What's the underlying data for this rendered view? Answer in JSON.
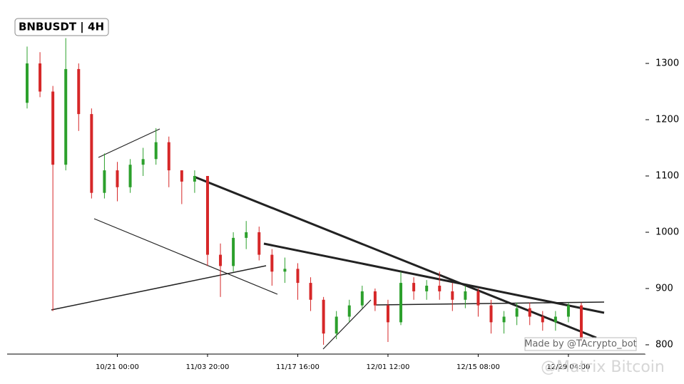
{
  "chart_data": {
    "type": "candlestick",
    "title": "BNBUSDT | 4H",
    "categories": [
      null,
      null,
      null,
      null,
      null,
      null,
      null,
      "10/21 00:00",
      null,
      null,
      null,
      null,
      null,
      null,
      "11/03 20:00",
      null,
      null,
      null,
      null,
      null,
      null,
      "11/17 16:00",
      null,
      null,
      null,
      null,
      null,
      null,
      "12/01 12:00",
      null,
      null,
      null,
      null,
      null,
      null,
      "12/15 08:00",
      null,
      null,
      null,
      null,
      null,
      null,
      "12/29 04:00",
      null
    ],
    "open": [
      1230,
      1300,
      1250,
      1120,
      1290,
      1210,
      1070,
      1110,
      1080,
      1120,
      1130,
      1160,
      1110,
      1090,
      1100,
      960,
      940,
      990,
      1000,
      960,
      930,
      935,
      910,
      880,
      820,
      850,
      870,
      895,
      870,
      840,
      910,
      895,
      905,
      895,
      880,
      895,
      870,
      840,
      850,
      865,
      850,
      840,
      850,
      870
    ],
    "high": [
      1330,
      1320,
      1260,
      1345,
      1300,
      1220,
      1140,
      1125,
      1130,
      1150,
      1185,
      1170,
      1110,
      1110,
      1100,
      980,
      1000,
      1020,
      1010,
      970,
      955,
      945,
      920,
      885,
      860,
      880,
      905,
      900,
      880,
      930,
      920,
      915,
      930,
      910,
      905,
      900,
      880,
      860,
      875,
      875,
      860,
      860,
      875,
      875
    ],
    "low": [
      1220,
      1240,
      860,
      1110,
      1180,
      1060,
      1060,
      1055,
      1070,
      1100,
      1120,
      1080,
      1050,
      1070,
      940,
      885,
      930,
      970,
      950,
      905,
      910,
      880,
      860,
      800,
      810,
      840,
      865,
      860,
      805,
      835,
      880,
      880,
      880,
      860,
      865,
      850,
      820,
      820,
      835,
      835,
      825,
      825,
      840,
      805
    ],
    "close": [
      1300,
      1250,
      1120,
      1290,
      1210,
      1070,
      1110,
      1080,
      1120,
      1130,
      1160,
      1110,
      1090,
      1100,
      960,
      940,
      990,
      1000,
      960,
      930,
      935,
      910,
      880,
      820,
      850,
      870,
      895,
      870,
      840,
      910,
      895,
      905,
      895,
      880,
      895,
      870,
      840,
      850,
      865,
      850,
      840,
      850,
      870,
      810
    ],
    "up_color": "#2ca02c",
    "down_color": "#d62728",
    "ylim": [
      783.5,
      1412.7
    ],
    "yticks": [
      800,
      900,
      1000,
      1100,
      1200,
      1300
    ],
    "credit": "Made by @TAcrypto_bot",
    "watermark": "@Matrix Bitcoin"
  }
}
